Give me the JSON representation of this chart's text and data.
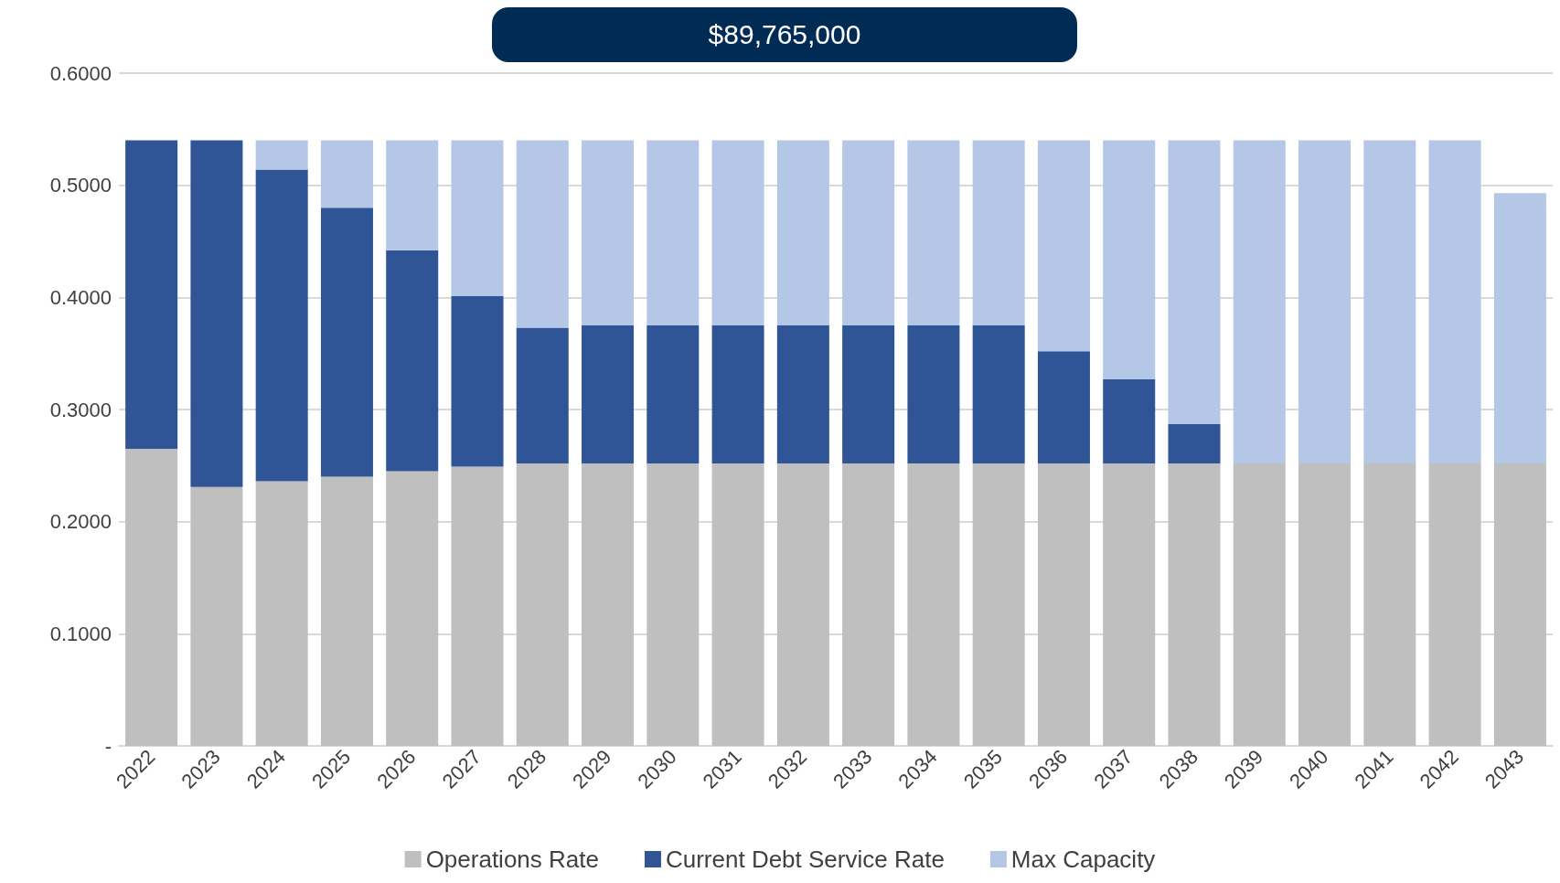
{
  "chart_data": {
    "type": "bar",
    "stacked": true,
    "categories": [
      "2022",
      "2023",
      "2024",
      "2025",
      "2026",
      "2027",
      "2028",
      "2029",
      "2030",
      "2031",
      "2032",
      "2033",
      "2034",
      "2035",
      "2036",
      "2037",
      "2038",
      "2039",
      "2040",
      "2041",
      "2042",
      "2043"
    ],
    "series": [
      {
        "name": "Operations Rate",
        "color": "#bfbfbf",
        "values": [
          0.265,
          0.231,
          0.236,
          0.24,
          0.245,
          0.249,
          0.252,
          0.252,
          0.252,
          0.252,
          0.252,
          0.252,
          0.252,
          0.252,
          0.252,
          0.252,
          0.252,
          0.252,
          0.252,
          0.252,
          0.252,
          0.252
        ]
      },
      {
        "name": "Current Debt Service Rate",
        "color": "#2f5597",
        "values": [
          0.275,
          0.309,
          0.278,
          0.24,
          0.197,
          0.152,
          0.121,
          0.123,
          0.123,
          0.123,
          0.123,
          0.123,
          0.123,
          0.123,
          0.1,
          0.075,
          0.035,
          0,
          0,
          0,
          0,
          0
        ]
      },
      {
        "name": "Max Capacity",
        "color": "#b4c7e7",
        "values": [
          0,
          0,
          0.026,
          0.06,
          0.098,
          0.139,
          0.167,
          0.165,
          0.165,
          0.165,
          0.165,
          0.165,
          0.165,
          0.165,
          0.188,
          0.213,
          0.253,
          0.288,
          0.288,
          0.288,
          0.288,
          0.241
        ]
      }
    ],
    "ylim": [
      0,
      0.6
    ],
    "yticks": [
      {
        "value": 0,
        "label": "-"
      },
      {
        "value": 0.1,
        "label": "0.1000"
      },
      {
        "value": 0.2,
        "label": "0.2000"
      },
      {
        "value": 0.3,
        "label": "0.3000"
      },
      {
        "value": 0.4,
        "label": "0.4000"
      },
      {
        "value": 0.5,
        "label": "0.5000"
      },
      {
        "value": 0.6,
        "label": "0.6000"
      }
    ],
    "grid": "y",
    "legend": "bottom",
    "annotations": [
      "$89,765,000"
    ]
  }
}
